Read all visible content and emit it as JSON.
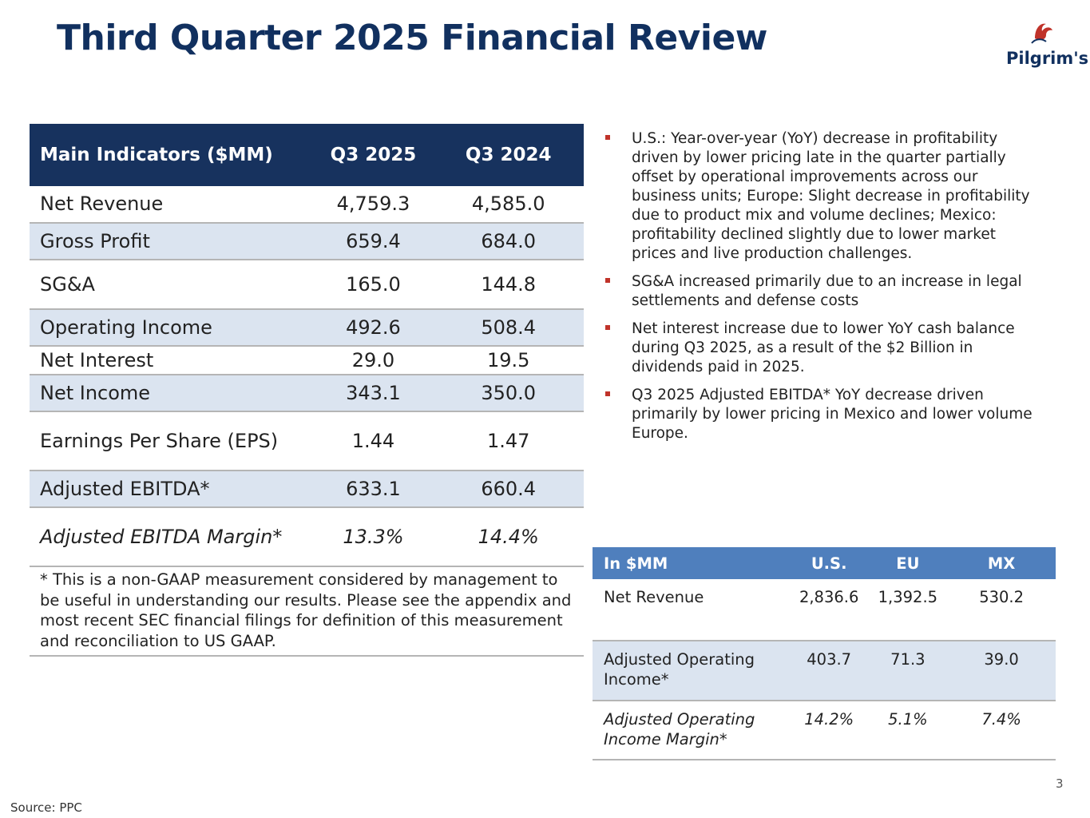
{
  "slide": {
    "title": "Third Quarter 2025 Financial Review",
    "logo_text": "Pilgrim's",
    "brand_color": "#11305f",
    "accent_color": "#c0332a",
    "page_number": "3",
    "source": "Source: PPC"
  },
  "main_table": {
    "headers": [
      "Main Indicators ($MM)",
      "Q3 2025",
      "Q3 2024"
    ],
    "rows": [
      {
        "label": "Net Revenue",
        "q3_2025": "4,759.3",
        "q3_2024": "4,585.0"
      },
      {
        "label": "Gross Profit",
        "q3_2025": "659.4",
        "q3_2024": "684.0"
      },
      {
        "label": "SG&A",
        "q3_2025": "165.0",
        "q3_2024": "144.8"
      },
      {
        "label": "Operating Income",
        "q3_2025": "492.6",
        "q3_2024": "508.4"
      },
      {
        "label": "Net Interest",
        "q3_2025": "29.0",
        "q3_2024": "19.5"
      },
      {
        "label": "Net Income",
        "q3_2025": "343.1",
        "q3_2024": "350.0"
      },
      {
        "label": "Earnings Per Share (EPS)",
        "q3_2025": "1.44",
        "q3_2024": "1.47"
      },
      {
        "label": "Adjusted EBITDA*",
        "q3_2025": "633.1",
        "q3_2024": "660.4"
      },
      {
        "label": "Adjusted EBITDA Margin*",
        "q3_2025": "13.3%",
        "q3_2024": "14.4%"
      }
    ],
    "footnote": "* This is a non-GAAP measurement considered by management to be useful in understanding our results. Please see the appendix and most recent SEC financial filings for definition of this measurement and reconciliation to US GAAP."
  },
  "bullets": [
    "U.S.: Year-over-year (YoY) decrease in profitability driven by lower pricing late in the quarter partially offset by operational improvements across our business units; Europe: Slight decrease in profitability due to product mix and volume declines; Mexico: profitability declined slightly due to lower market prices and live production challenges.",
    "SG&A increased primarily due to an increase in legal settlements and defense costs",
    "Net interest increase due to lower YoY cash balance during Q3 2025, as a result of the $2 Billion in dividends paid in 2025.",
    "Q3 2025 Adjusted EBITDA* YoY decrease driven primarily by lower pricing in Mexico and lower volume Europe."
  ],
  "segment_table": {
    "headers": [
      "In $MM",
      "U.S.",
      "EU",
      "MX"
    ],
    "rows": [
      {
        "label": "Net Revenue",
        "us": "2,836.6",
        "eu": "1,392.5",
        "mx": "530.2"
      },
      {
        "label": "Adjusted Operating Income*",
        "us": "403.7",
        "eu": "71.3",
        "mx": "39.0"
      },
      {
        "label": "Adjusted Operating Income Margin*",
        "us": "14.2%",
        "eu": "5.1%",
        "mx": "7.4%"
      }
    ]
  }
}
